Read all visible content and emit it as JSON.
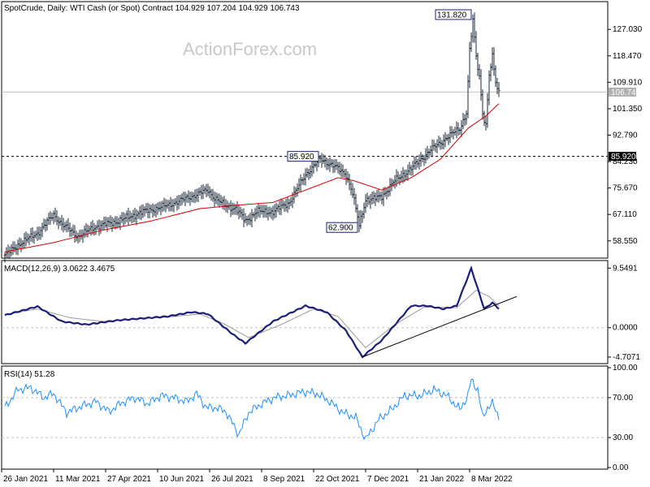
{
  "chart_data": [
    {
      "type": "ohlc",
      "title": "SpotCrude, Daily:  WTI Cash (or Spot) Contract  104.929 107.204 104.929 106.743",
      "watermark": "ActionForex.com",
      "ylim": [
        53.5,
        135.5
      ],
      "ytick_labels": [
        "58.550",
        "67.110",
        "75.670",
        "84.230",
        "92.790",
        "101.350",
        "109.910",
        "118.470",
        "127.030"
      ],
      "ytick_values": [
        58.55,
        67.11,
        75.67,
        84.23,
        92.79,
        101.35,
        109.91,
        118.47,
        127.03
      ],
      "xtick_labels": [
        "26 Jan 2021",
        "11 Mar 2021",
        "27 Apr 2021",
        "10 Jun 2021",
        "26 Jul 2021",
        "8 Sep 2021",
        "22 Oct 2021",
        "7 Dec 2021",
        "21 Jan 2022",
        "8 Mar 2022"
      ],
      "current_price": {
        "value": 106.743,
        "label": "106.743"
      },
      "resistance_level": {
        "value": 85.92,
        "label": "85.920"
      },
      "annotations": [
        {
          "label": "131.820",
          "value": 131.82,
          "bar": 288
        },
        {
          "label": "85.920",
          "value": 85.92,
          "bar": 194
        },
        {
          "label": "62.900",
          "value": 62.9,
          "bar": 218
        }
      ],
      "close_anchors": [
        [
          0,
          53.8
        ],
        [
          10,
          58
        ],
        [
          20,
          61
        ],
        [
          30,
          67
        ],
        [
          35,
          64
        ],
        [
          45,
          60
        ],
        [
          55,
          63
        ],
        [
          70,
          65
        ],
        [
          85,
          68
        ],
        [
          100,
          70
        ],
        [
          115,
          73
        ],
        [
          125,
          75
        ],
        [
          128,
          73
        ],
        [
          135,
          70
        ],
        [
          142,
          69
        ],
        [
          148,
          65
        ],
        [
          155,
          68
        ],
        [
          165,
          68
        ],
        [
          175,
          71
        ],
        [
          185,
          80
        ],
        [
          194,
          85
        ],
        [
          202,
          83
        ],
        [
          210,
          80
        ],
        [
          214,
          74
        ],
        [
          218,
          63.5
        ],
        [
          222,
          72
        ],
        [
          226,
          72
        ],
        [
          232,
          73
        ],
        [
          240,
          78
        ],
        [
          250,
          82
        ],
        [
          262,
          88
        ],
        [
          272,
          92
        ],
        [
          280,
          95
        ],
        [
          284,
          100
        ],
        [
          286,
          120
        ],
        [
          288,
          130
        ],
        [
          290,
          118
        ],
        [
          292,
          112
        ],
        [
          294,
          100
        ],
        [
          296,
          96
        ],
        [
          298,
          112
        ],
        [
          300,
          118
        ],
        [
          302,
          110
        ],
        [
          304,
          106.7
        ]
      ],
      "ma_anchors": [
        [
          0,
          55
        ],
        [
          30,
          58
        ],
        [
          60,
          62
        ],
        [
          90,
          65
        ],
        [
          120,
          69
        ],
        [
          140,
          70
        ],
        [
          165,
          71
        ],
        [
          190,
          76
        ],
        [
          205,
          79
        ],
        [
          215,
          78
        ],
        [
          232,
          75
        ],
        [
          250,
          79
        ],
        [
          268,
          85
        ],
        [
          285,
          95
        ],
        [
          296,
          99
        ],
        [
          304,
          103
        ]
      ]
    },
    {
      "type": "line",
      "title": "MACD(12,26,9) 3.0622 3.4675",
      "ylim": [
        -5.5,
        10.5
      ],
      "ytick_labels": [
        "9.5491",
        "0.0000",
        "-4.7071"
      ],
      "ytick_values": [
        9.5491,
        0.0,
        -4.7071
      ],
      "macd_anchors": [
        [
          0,
          2.0
        ],
        [
          20,
          3.4
        ],
        [
          35,
          1.0
        ],
        [
          50,
          0.5
        ],
        [
          70,
          1.2
        ],
        [
          85,
          1.5
        ],
        [
          100,
          1.8
        ],
        [
          115,
          2.5
        ],
        [
          125,
          2.2
        ],
        [
          140,
          -1.0
        ],
        [
          148,
          -2.5
        ],
        [
          165,
          1.0
        ],
        [
          185,
          3.5
        ],
        [
          198,
          2.5
        ],
        [
          210,
          -0.5
        ],
        [
          220,
          -4.7
        ],
        [
          232,
          -2.0
        ],
        [
          250,
          3.5
        ],
        [
          260,
          3.5
        ],
        [
          270,
          3.0
        ],
        [
          278,
          3.5
        ],
        [
          287,
          9.5
        ],
        [
          295,
          3.0
        ],
        [
          300,
          4.0
        ],
        [
          304,
          3.06
        ]
      ],
      "signal_anchors": [
        [
          0,
          2.1
        ],
        [
          20,
          3.0
        ],
        [
          40,
          1.6
        ],
        [
          60,
          1.0
        ],
        [
          80,
          1.4
        ],
        [
          100,
          1.7
        ],
        [
          120,
          2.2
        ],
        [
          135,
          0.6
        ],
        [
          150,
          -1.6
        ],
        [
          170,
          0.5
        ],
        [
          190,
          3.0
        ],
        [
          205,
          1.8
        ],
        [
          222,
          -3.2
        ],
        [
          240,
          0.5
        ],
        [
          258,
          3.3
        ],
        [
          278,
          3.2
        ],
        [
          290,
          6.0
        ],
        [
          298,
          5.0
        ],
        [
          304,
          3.47
        ]
      ],
      "trendline": {
        "from": [
          220,
          -4.7
        ],
        "to": [
          315,
          5.0
        ]
      }
    },
    {
      "type": "line",
      "title": "RSI(14) 51.28",
      "ylim": [
        0,
        100
      ],
      "ytick_labels": [
        "100.00",
        "70.00",
        "30.00",
        "0.00"
      ],
      "ytick_values": [
        100,
        70,
        30,
        0
      ],
      "rsi_anchors": [
        [
          0,
          60
        ],
        [
          8,
          78
        ],
        [
          16,
          80
        ],
        [
          24,
          70
        ],
        [
          30,
          74
        ],
        [
          38,
          55
        ],
        [
          48,
          62
        ],
        [
          56,
          66
        ],
        [
          64,
          56
        ],
        [
          72,
          65
        ],
        [
          80,
          70
        ],
        [
          88,
          64
        ],
        [
          96,
          72
        ],
        [
          104,
          70
        ],
        [
          112,
          66
        ],
        [
          118,
          74
        ],
        [
          124,
          60
        ],
        [
          130,
          60
        ],
        [
          136,
          56
        ],
        [
          144,
          33
        ],
        [
          150,
          55
        ],
        [
          158,
          64
        ],
        [
          166,
          70
        ],
        [
          174,
          72
        ],
        [
          184,
          76
        ],
        [
          192,
          74
        ],
        [
          200,
          66
        ],
        [
          208,
          55
        ],
        [
          216,
          50
        ],
        [
          222,
          28
        ],
        [
          230,
          48
        ],
        [
          238,
          58
        ],
        [
          246,
          72
        ],
        [
          256,
          72
        ],
        [
          264,
          78
        ],
        [
          272,
          72
        ],
        [
          280,
          58
        ],
        [
          285,
          72
        ],
        [
          287,
          88
        ],
        [
          291,
          78
        ],
        [
          294,
          50
        ],
        [
          297,
          60
        ],
        [
          300,
          64
        ],
        [
          304,
          51.28
        ]
      ]
    }
  ]
}
